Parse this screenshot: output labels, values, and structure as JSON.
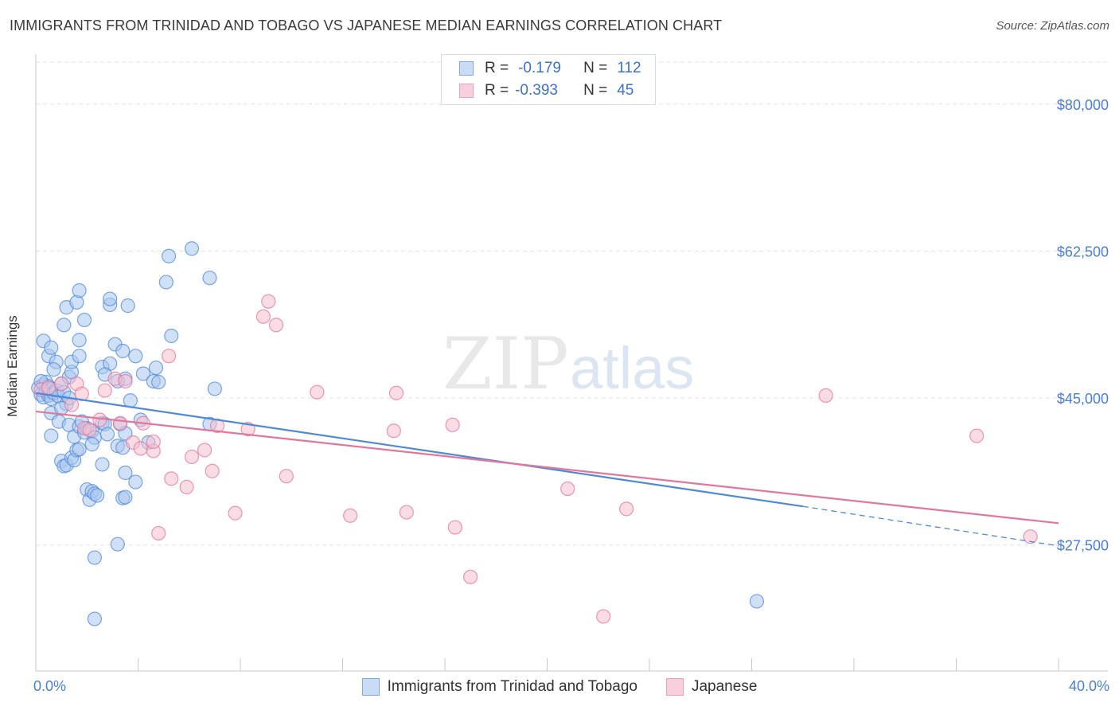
{
  "title": "IMMIGRANTS FROM TRINIDAD AND TOBAGO VS JAPANESE MEDIAN EARNINGS CORRELATION CHART",
  "source": "Source: ZipAtlas.com",
  "watermark": {
    "part1": "ZIP",
    "part2": "atlas"
  },
  "stats": [
    {
      "r_label": "R =",
      "r_value": "-0.179",
      "n_label": "N =",
      "n_value": "112",
      "color": "#7fa9e6",
      "fill": "#c9dbf5"
    },
    {
      "r_label": "R =",
      "r_value": "-0.393",
      "n_label": "N =",
      "n_value": "45",
      "color": "#ee9fb8",
      "fill": "#f8d0dd"
    }
  ],
  "chart_data": {
    "type": "scatter",
    "xlabel": "",
    "ylabel": "Median Earnings",
    "xlim": [
      0,
      40
    ],
    "ylim": [
      12500,
      85000
    ],
    "x_tick_labels": [
      "0.0%",
      "40.0%"
    ],
    "y_ticks": [
      27500,
      45000,
      62500,
      80000
    ],
    "y_tick_labels": [
      "$27,500",
      "$45,000",
      "$62,500",
      "$80,000"
    ],
    "grid": true,
    "legend_position": "bottom",
    "series": [
      {
        "name": "Immigrants from Trinidad and Tobago",
        "color": "#4f8ad8",
        "fill": "#a9c7ef",
        "trend": {
          "x0": 0,
          "y0": 45600,
          "x1": 30,
          "y1": 32100,
          "dash_to_x": 40,
          "dash_to_y": 27400
        },
        "points": [
          [
            0.1,
            46200
          ],
          [
            0.2,
            45400
          ],
          [
            0.3,
            46600
          ],
          [
            0.3,
            45100
          ],
          [
            0.4,
            46900
          ],
          [
            0.4,
            45800
          ],
          [
            0.5,
            45300
          ],
          [
            0.5,
            46400
          ],
          [
            0.6,
            44900
          ],
          [
            0.6,
            46100
          ],
          [
            0.2,
            47000
          ],
          [
            0.7,
            45600
          ],
          [
            0.8,
            45900
          ],
          [
            0.9,
            45200
          ],
          [
            1.0,
            46700
          ],
          [
            1.1,
            45700
          ],
          [
            1.2,
            44300
          ],
          [
            1.3,
            45000
          ],
          [
            0.3,
            51800
          ],
          [
            0.5,
            50000
          ],
          [
            0.6,
            51000
          ],
          [
            0.8,
            49300
          ],
          [
            0.7,
            48400
          ],
          [
            1.3,
            47500
          ],
          [
            1.4,
            48100
          ],
          [
            1.4,
            49300
          ],
          [
            1.7,
            50000
          ],
          [
            1.7,
            51900
          ],
          [
            2.6,
            48700
          ],
          [
            2.9,
            49100
          ],
          [
            2.7,
            47800
          ],
          [
            3.2,
            47000
          ],
          [
            3.5,
            47300
          ],
          [
            3.9,
            50000
          ],
          [
            4.2,
            47900
          ],
          [
            4.6,
            47000
          ],
          [
            4.7,
            48600
          ],
          [
            4.8,
            46900
          ],
          [
            1.2,
            55800
          ],
          [
            1.6,
            56400
          ],
          [
            1.7,
            57800
          ],
          [
            1.9,
            54300
          ],
          [
            2.9,
            56100
          ],
          [
            2.9,
            56800
          ],
          [
            3.6,
            56000
          ],
          [
            3.1,
            51400
          ],
          [
            3.4,
            50600
          ],
          [
            1.1,
            53700
          ],
          [
            5.3,
            52400
          ],
          [
            5.2,
            61900
          ],
          [
            5.1,
            58800
          ],
          [
            6.1,
            62800
          ],
          [
            6.8,
            59300
          ],
          [
            7.0,
            46100
          ],
          [
            6.8,
            41900
          ],
          [
            0.6,
            43200
          ],
          [
            0.9,
            42200
          ],
          [
            1.0,
            43800
          ],
          [
            1.3,
            41800
          ],
          [
            1.5,
            40400
          ],
          [
            1.7,
            41600
          ],
          [
            1.8,
            42200
          ],
          [
            1.9,
            40900
          ],
          [
            2.0,
            41400
          ],
          [
            2.2,
            41100
          ],
          [
            2.3,
            40300
          ],
          [
            2.2,
            39500
          ],
          [
            2.6,
            42000
          ],
          [
            2.7,
            41900
          ],
          [
            2.8,
            40700
          ],
          [
            3.3,
            41900
          ],
          [
            3.2,
            39300
          ],
          [
            3.4,
            39100
          ],
          [
            3.5,
            40800
          ],
          [
            3.7,
            44700
          ],
          [
            4.1,
            42400
          ],
          [
            4.4,
            39700
          ],
          [
            0.6,
            40500
          ],
          [
            1.0,
            37500
          ],
          [
            1.1,
            36900
          ],
          [
            1.2,
            37000
          ],
          [
            1.4,
            37900
          ],
          [
            1.5,
            37600
          ],
          [
            1.6,
            38800
          ],
          [
            2.6,
            37100
          ],
          [
            1.7,
            38900
          ],
          [
            2.0,
            34100
          ],
          [
            2.1,
            32900
          ],
          [
            2.2,
            33900
          ],
          [
            2.3,
            33600
          ],
          [
            2.4,
            33400
          ],
          [
            3.4,
            33100
          ],
          [
            3.5,
            33200
          ],
          [
            3.5,
            36100
          ],
          [
            3.9,
            35000
          ],
          [
            2.3,
            26000
          ],
          [
            3.2,
            27600
          ],
          [
            2.3,
            18700
          ],
          [
            28.2,
            20800
          ]
        ]
      },
      {
        "name": "Japanese",
        "color": "#e3769b",
        "fill": "#f5bfd0",
        "trend": {
          "x0": 0,
          "y0": 43400,
          "x1": 40,
          "y1": 30100
        },
        "points": [
          [
            0.2,
            46000
          ],
          [
            0.5,
            46200
          ],
          [
            1.0,
            46700
          ],
          [
            1.4,
            44200
          ],
          [
            1.6,
            46700
          ],
          [
            1.8,
            45500
          ],
          [
            1.9,
            41400
          ],
          [
            2.1,
            41200
          ],
          [
            2.5,
            42400
          ],
          [
            2.7,
            45900
          ],
          [
            3.1,
            47300
          ],
          [
            3.3,
            42000
          ],
          [
            3.5,
            47000
          ],
          [
            3.8,
            39700
          ],
          [
            4.1,
            39000
          ],
          [
            4.2,
            42000
          ],
          [
            4.6,
            38700
          ],
          [
            4.6,
            39800
          ],
          [
            4.8,
            28900
          ],
          [
            5.2,
            50000
          ],
          [
            5.3,
            35400
          ],
          [
            5.9,
            34400
          ],
          [
            6.1,
            38000
          ],
          [
            6.6,
            38800
          ],
          [
            6.9,
            36300
          ],
          [
            7.1,
            41700
          ],
          [
            7.8,
            31300
          ],
          [
            8.3,
            41300
          ],
          [
            8.9,
            54700
          ],
          [
            9.1,
            56500
          ],
          [
            9.4,
            53700
          ],
          [
            9.8,
            35700
          ],
          [
            11.0,
            45700
          ],
          [
            12.3,
            31000
          ],
          [
            14.0,
            41100
          ],
          [
            14.1,
            45600
          ],
          [
            14.5,
            31400
          ],
          [
            16.3,
            41800
          ],
          [
            16.4,
            29600
          ],
          [
            17.0,
            23700
          ],
          [
            20.8,
            34200
          ],
          [
            22.2,
            19000
          ],
          [
            23.1,
            31800
          ],
          [
            30.9,
            45300
          ],
          [
            36.8,
            40500
          ],
          [
            38.9,
            28500
          ]
        ]
      }
    ]
  }
}
